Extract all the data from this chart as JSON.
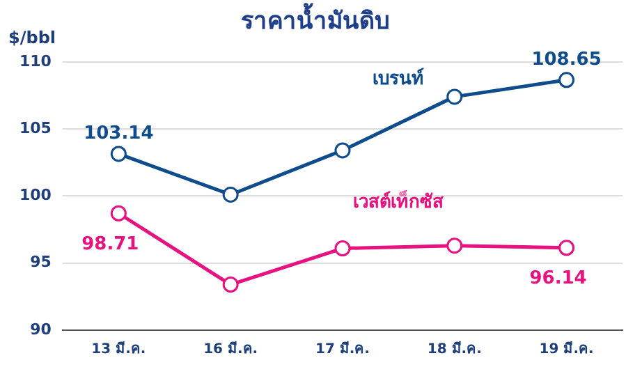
{
  "chart_data": {
    "type": "line",
    "title": "ราคาน้ำมันดิบ",
    "ylabel": "$/bbl",
    "categories": [
      "13 มี.ค.",
      "16 มี.ค.",
      "17 มี.ค.",
      "18 มี.ค.",
      "19 มี.ค."
    ],
    "series": [
      {
        "name": "เบรนท์",
        "color": "#0e4c8c",
        "values": [
          103.14,
          100.1,
          103.4,
          107.4,
          108.65
        ],
        "value_labels": [
          "103.14",
          null,
          null,
          null,
          "108.65"
        ]
      },
      {
        "name": "เวสต์เท็กซัส",
        "color": "#e6127f",
        "values": [
          98.71,
          93.4,
          96.1,
          96.3,
          96.14
        ],
        "value_labels": [
          "98.71",
          null,
          null,
          null,
          "96.14"
        ]
      }
    ],
    "ylim": [
      90,
      110
    ],
    "yticks": [
      90,
      95,
      100,
      105,
      110
    ],
    "grid": "y",
    "legend": false,
    "marker": "circle",
    "line_style": "solid"
  }
}
